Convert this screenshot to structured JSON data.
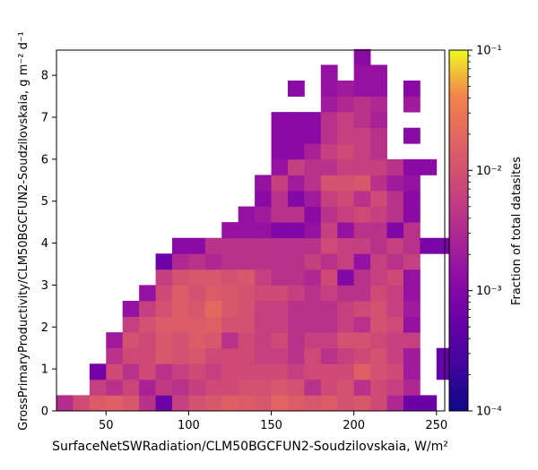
{
  "chart_data": {
    "type": "heatmap",
    "xlabel": "SurfaceNetSWRadiation/CLM50BGCFUN2-Soudzilovskaia,  W/m²",
    "ylabel": "GrossPrimaryProductivity/CLM50BGCFUN2-Soudzilovskaia,  g m⁻² d⁻¹",
    "xlim": [
      20,
      255
    ],
    "ylim": [
      0,
      8.6
    ],
    "xticks": [
      50,
      100,
      150,
      200,
      250
    ],
    "yticks": [
      0,
      1,
      2,
      3,
      4,
      5,
      6,
      7,
      8
    ],
    "x_bin_width": 10,
    "y_bin_width": 0.375,
    "x_start": 20,
    "colorbar": {
      "label": "Fraction of total datasites",
      "scale": "log",
      "range": [
        0.0001,
        0.1
      ],
      "tick_labels": [
        "10⁻⁴",
        "10⁻³",
        "10⁻²",
        "10⁻¹"
      ],
      "colormap": "plasma"
    },
    "grid": false,
    "rows": [
      [
        [
          0,
          0.0035
        ],
        [
          1,
          0.0085
        ],
        [
          2,
          0.014
        ],
        [
          3,
          0.016
        ],
        [
          4,
          0.012
        ],
        [
          5,
          0.004
        ],
        [
          6,
          0.0006
        ],
        [
          7,
          0.006
        ],
        [
          8,
          0.01
        ],
        [
          9,
          0.012
        ],
        [
          10,
          0.016
        ],
        [
          11,
          0.014
        ],
        [
          12,
          0.012
        ],
        [
          13,
          0.018
        ],
        [
          14,
          0.014
        ],
        [
          15,
          0.012
        ],
        [
          16,
          0.014
        ],
        [
          17,
          0.01
        ],
        [
          18,
          0.012
        ],
        [
          19,
          0.008
        ],
        [
          20,
          0.003
        ],
        [
          21,
          0.0006
        ],
        [
          22,
          0.0006
        ]
      ],
      [
        [
          2,
          0.006
        ],
        [
          3,
          0.004
        ],
        [
          4,
          0.007
        ],
        [
          5,
          0.0025
        ],
        [
          6,
          0.005
        ],
        [
          7,
          0.004
        ],
        [
          8,
          0.006
        ],
        [
          9,
          0.008
        ],
        [
          10,
          0.008
        ],
        [
          11,
          0.01
        ],
        [
          12,
          0.01
        ],
        [
          13,
          0.012
        ],
        [
          14,
          0.01
        ],
        [
          15,
          0.004
        ],
        [
          16,
          0.008
        ],
        [
          17,
          0.01
        ],
        [
          18,
          0.004
        ],
        [
          19,
          0.008
        ],
        [
          20,
          0.006
        ],
        [
          21,
          0.003
        ]
      ],
      [
        [
          2,
          0.0007
        ],
        [
          3,
          0.008
        ],
        [
          4,
          0.004
        ],
        [
          5,
          0.008
        ],
        [
          6,
          0.004
        ],
        [
          7,
          0.006
        ],
        [
          8,
          0.008
        ],
        [
          9,
          0.006
        ],
        [
          10,
          0.008
        ],
        [
          11,
          0.008
        ],
        [
          12,
          0.008
        ],
        [
          13,
          0.008
        ],
        [
          14,
          0.006
        ],
        [
          15,
          0.008
        ],
        [
          16,
          0.008
        ],
        [
          17,
          0.008
        ],
        [
          18,
          0.016
        ],
        [
          19,
          0.01
        ],
        [
          20,
          0.008
        ],
        [
          21,
          0.002
        ],
        [
          23,
          0.0005
        ]
      ],
      [
        [
          3,
          0.004
        ],
        [
          4,
          0.008
        ],
        [
          5,
          0.008
        ],
        [
          6,
          0.012
        ],
        [
          7,
          0.01
        ],
        [
          8,
          0.012
        ],
        [
          9,
          0.008
        ],
        [
          10,
          0.008
        ],
        [
          11,
          0.008
        ],
        [
          12,
          0.006
        ],
        [
          13,
          0.006
        ],
        [
          14,
          0.004
        ],
        [
          15,
          0.008
        ],
        [
          16,
          0.004
        ],
        [
          17,
          0.006
        ],
        [
          18,
          0.008
        ],
        [
          19,
          0.01
        ],
        [
          20,
          0.006
        ],
        [
          21,
          0.002
        ],
        [
          23,
          0.0005
        ]
      ],
      [
        [
          3,
          0.002
        ],
        [
          4,
          0.01
        ],
        [
          5,
          0.008
        ],
        [
          6,
          0.012
        ],
        [
          7,
          0.01
        ],
        [
          8,
          0.014
        ],
        [
          9,
          0.012
        ],
        [
          10,
          0.004
        ],
        [
          11,
          0.008
        ],
        [
          12,
          0.006
        ],
        [
          13,
          0.008
        ],
        [
          14,
          0.004
        ],
        [
          15,
          0.006
        ],
        [
          16,
          0.006
        ],
        [
          17,
          0.01
        ],
        [
          18,
          0.01
        ],
        [
          19,
          0.008
        ],
        [
          20,
          0.006
        ],
        [
          21,
          0.006
        ]
      ],
      [
        [
          4,
          0.006
        ],
        [
          5,
          0.01
        ],
        [
          6,
          0.014
        ],
        [
          7,
          0.014
        ],
        [
          8,
          0.014
        ],
        [
          9,
          0.016
        ],
        [
          10,
          0.01
        ],
        [
          11,
          0.01
        ],
        [
          12,
          0.006
        ],
        [
          13,
          0.006
        ],
        [
          14,
          0.004
        ],
        [
          15,
          0.004
        ],
        [
          16,
          0.004
        ],
        [
          17,
          0.006
        ],
        [
          18,
          0.004
        ],
        [
          19,
          0.01
        ],
        [
          20,
          0.008
        ],
        [
          21,
          0.0015
        ]
      ],
      [
        [
          4,
          0.0015
        ],
        [
          5,
          0.006
        ],
        [
          6,
          0.01
        ],
        [
          7,
          0.014
        ],
        [
          8,
          0.012
        ],
        [
          9,
          0.02
        ],
        [
          10,
          0.012
        ],
        [
          11,
          0.01
        ],
        [
          12,
          0.006
        ],
        [
          13,
          0.006
        ],
        [
          14,
          0.004
        ],
        [
          15,
          0.004
        ],
        [
          16,
          0.004
        ],
        [
          17,
          0.006
        ],
        [
          18,
          0.008
        ],
        [
          19,
          0.01
        ],
        [
          20,
          0.006
        ],
        [
          21,
          0.002
        ]
      ],
      [
        [
          5,
          0.0015
        ],
        [
          6,
          0.008
        ],
        [
          7,
          0.014
        ],
        [
          8,
          0.01
        ],
        [
          9,
          0.014
        ],
        [
          10,
          0.012
        ],
        [
          11,
          0.01
        ],
        [
          12,
          0.008
        ],
        [
          13,
          0.008
        ],
        [
          14,
          0.006
        ],
        [
          15,
          0.004
        ],
        [
          16,
          0.006
        ],
        [
          17,
          0.004
        ],
        [
          18,
          0.004
        ],
        [
          19,
          0.008
        ],
        [
          20,
          0.006
        ],
        [
          21,
          0.0015
        ]
      ],
      [
        [
          6,
          0.006
        ],
        [
          7,
          0.01
        ],
        [
          8,
          0.012
        ],
        [
          9,
          0.012
        ],
        [
          10,
          0.01
        ],
        [
          11,
          0.012
        ],
        [
          12,
          0.006
        ],
        [
          13,
          0.004
        ],
        [
          14,
          0.004
        ],
        [
          15,
          0.003
        ],
        [
          16,
          0.008
        ],
        [
          17,
          0.001
        ],
        [
          18,
          0.004
        ],
        [
          19,
          0.006
        ],
        [
          20,
          0.008
        ],
        [
          21,
          0.0015
        ]
      ],
      [
        [
          6,
          0.0006
        ],
        [
          7,
          0.003
        ],
        [
          8,
          0.004
        ],
        [
          9,
          0.003
        ],
        [
          10,
          0.004
        ],
        [
          11,
          0.004
        ],
        [
          12,
          0.004
        ],
        [
          13,
          0.004
        ],
        [
          14,
          0.004
        ],
        [
          15,
          0.006
        ],
        [
          16,
          0.004
        ],
        [
          17,
          0.006
        ],
        [
          18,
          0.0015
        ],
        [
          19,
          0.006
        ],
        [
          20,
          0.004
        ],
        [
          21,
          0.006
        ]
      ],
      [
        [
          7,
          0.0012
        ],
        [
          8,
          0.0012
        ],
        [
          9,
          0.004
        ],
        [
          10,
          0.004
        ],
        [
          11,
          0.004
        ],
        [
          12,
          0.004
        ],
        [
          13,
          0.004
        ],
        [
          14,
          0.004
        ],
        [
          15,
          0.004
        ],
        [
          16,
          0.008
        ],
        [
          17,
          0.006
        ],
        [
          18,
          0.006
        ],
        [
          19,
          0.004
        ],
        [
          20,
          0.006
        ],
        [
          21,
          0.004
        ],
        [
          22,
          0.0008
        ],
        [
          23,
          0.0008
        ]
      ],
      [
        [
          10,
          0.0015
        ],
        [
          11,
          0.0015
        ],
        [
          12,
          0.0015
        ],
        [
          13,
          0.0009
        ],
        [
          14,
          0.0009
        ],
        [
          15,
          0.0015
        ],
        [
          16,
          0.006
        ],
        [
          17,
          0.0015
        ],
        [
          18,
          0.004
        ],
        [
          19,
          0.004
        ],
        [
          20,
          0.0009
        ],
        [
          21,
          0.004
        ]
      ],
      [
        [
          11,
          0.0015
        ],
        [
          12,
          0.002
        ],
        [
          13,
          0.004
        ],
        [
          14,
          0.004
        ],
        [
          15,
          0.0012
        ],
        [
          16,
          0.004
        ],
        [
          17,
          0.006
        ],
        [
          18,
          0.008
        ],
        [
          19,
          0.006
        ],
        [
          20,
          0.004
        ],
        [
          21,
          0.0012
        ]
      ],
      [
        [
          12,
          0.0012
        ],
        [
          13,
          0.004
        ],
        [
          14,
          0.001
        ],
        [
          15,
          0.002
        ],
        [
          16,
          0.006
        ],
        [
          17,
          0.008
        ],
        [
          18,
          0.004
        ],
        [
          19,
          0.008
        ],
        [
          20,
          0.004
        ],
        [
          21,
          0.0012
        ]
      ],
      [
        [
          12,
          0.0015
        ],
        [
          13,
          0.006
        ],
        [
          14,
          0.002
        ],
        [
          15,
          0.004
        ],
        [
          16,
          0.01
        ],
        [
          17,
          0.01
        ],
        [
          18,
          0.012
        ],
        [
          19,
          0.004
        ],
        [
          20,
          0.002
        ],
        [
          21,
          0.0015
        ]
      ],
      [
        [
          13,
          0.0015
        ],
        [
          14,
          0.006
        ],
        [
          15,
          0.004
        ],
        [
          16,
          0.004
        ],
        [
          17,
          0.006
        ],
        [
          18,
          0.006
        ],
        [
          19,
          0.006
        ],
        [
          20,
          0.004
        ],
        [
          21,
          0.0012
        ],
        [
          22,
          0.0012
        ]
      ],
      [
        [
          13,
          0.0012
        ],
        [
          14,
          0.0012
        ],
        [
          15,
          0.0025
        ],
        [
          16,
          0.006
        ],
        [
          17,
          0.008
        ],
        [
          18,
          0.006
        ],
        [
          19,
          0.004
        ]
      ],
      [
        [
          13,
          0.0012
        ],
        [
          14,
          0.0012
        ],
        [
          15,
          0.0012
        ],
        [
          16,
          0.004
        ],
        [
          17,
          0.006
        ],
        [
          18,
          0.006
        ],
        [
          19,
          0.004
        ],
        [
          21,
          0.0012
        ]
      ],
      [
        [
          13,
          0.0012
        ],
        [
          14,
          0.0012
        ],
        [
          15,
          0.0012
        ],
        [
          16,
          0.004
        ],
        [
          17,
          0.006
        ],
        [
          18,
          0.004
        ],
        [
          19,
          0.0025
        ]
      ],
      [
        [
          16,
          0.002
        ],
        [
          17,
          0.003
        ],
        [
          18,
          0.004
        ],
        [
          19,
          0.003
        ],
        [
          21,
          0.002
        ]
      ],
      [
        [
          14,
          0.0012
        ],
        [
          16,
          0.0015
        ],
        [
          17,
          0.002
        ],
        [
          18,
          0.0015
        ],
        [
          19,
          0.0015
        ],
        [
          21,
          0.0012
        ]
      ],
      [
        [
          16,
          0.0015
        ],
        [
          18,
          0.0015
        ],
        [
          19,
          0.0015
        ]
      ],
      [
        [
          18,
          0.0012
        ]
      ]
    ]
  }
}
